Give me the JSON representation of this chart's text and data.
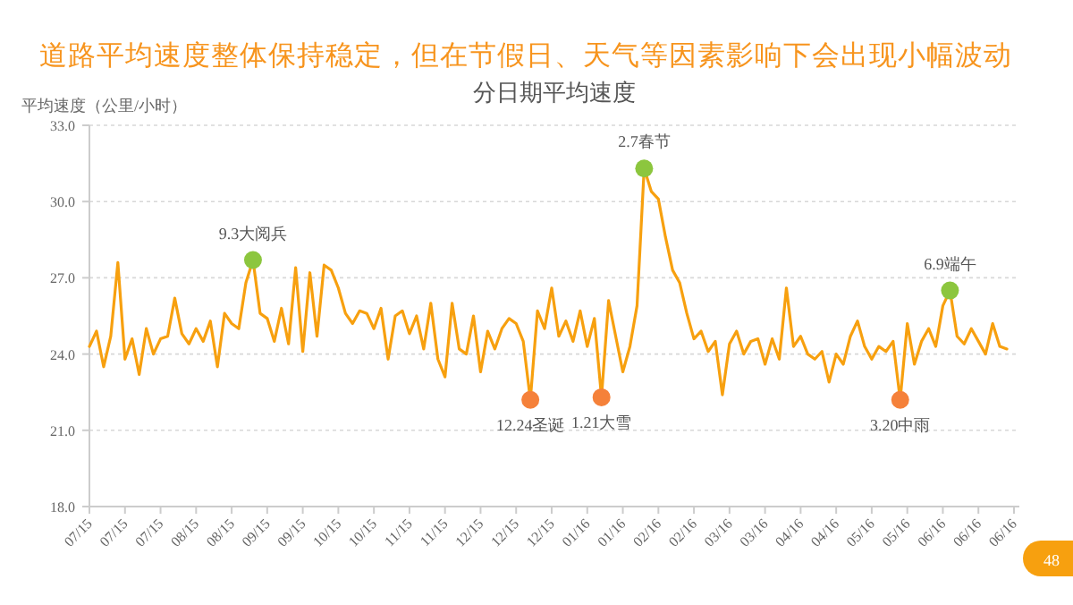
{
  "chart_data": {
    "type": "line",
    "title": "道路平均速度整体保持稳定，但在节假日、天气等因素影响下会出现小幅波动",
    "subtitle": "分日期平均速度",
    "ylabel": "平均速度（公里/小时）",
    "categories": [
      "07/15",
      null,
      null,
      null,
      null,
      "07/15",
      null,
      null,
      null,
      null,
      "07/15",
      null,
      null,
      null,
      null,
      "08/15",
      null,
      null,
      null,
      null,
      "08/15",
      null,
      null,
      null,
      null,
      "09/15",
      null,
      null,
      null,
      null,
      "09/15",
      null,
      null,
      null,
      null,
      "10/15",
      null,
      null,
      null,
      null,
      "10/15",
      null,
      null,
      null,
      null,
      "11/15",
      null,
      null,
      null,
      null,
      "11/15",
      null,
      null,
      null,
      null,
      "12/15",
      null,
      null,
      null,
      null,
      "12/15",
      null,
      null,
      null,
      null,
      "12/15",
      null,
      null,
      null,
      null,
      "01/16",
      null,
      null,
      null,
      null,
      "01/16",
      null,
      null,
      null,
      null,
      "02/16",
      null,
      null,
      null,
      null,
      "02/16",
      null,
      null,
      null,
      null,
      "03/16",
      null,
      null,
      null,
      null,
      "03/16",
      null,
      null,
      null,
      null,
      "04/16",
      null,
      null,
      null,
      null,
      "04/16",
      null,
      null,
      null,
      null,
      "05/16",
      null,
      null,
      null,
      null,
      "05/16",
      null,
      null,
      null,
      null,
      "06/16",
      null,
      null,
      null,
      null,
      "06/16",
      null,
      null,
      null,
      null,
      "06/16"
    ],
    "series": [
      {
        "color": "#f7a00f",
        "values": [
          24.3,
          24.9,
          23.5,
          24.7,
          27.6,
          23.8,
          24.6,
          23.2,
          25.0,
          24.0,
          24.6,
          24.7,
          26.2,
          24.8,
          24.4,
          25.0,
          24.5,
          25.3,
          23.5,
          25.6,
          25.2,
          25.0,
          26.8,
          27.7,
          25.6,
          25.4,
          24.5,
          25.8,
          24.4,
          27.4,
          24.1,
          27.2,
          24.7,
          27.5,
          27.3,
          26.6,
          25.6,
          25.2,
          25.7,
          25.6,
          25.0,
          25.8,
          23.8,
          25.5,
          25.7,
          24.8,
          25.5,
          24.2,
          26.0,
          23.8,
          23.1,
          26.0,
          24.2,
          24.0,
          25.5,
          23.3,
          24.9,
          24.2,
          25.0,
          25.4,
          25.2,
          24.5,
          22.2,
          25.7,
          25.0,
          26.6,
          24.7,
          25.3,
          24.5,
          25.7,
          24.3,
          25.4,
          22.3,
          26.1,
          24.7,
          23.3,
          24.3,
          25.9,
          31.3,
          30.4,
          30.1,
          28.6,
          27.3,
          26.8,
          25.6,
          24.6,
          24.9,
          24.1,
          24.5,
          22.4,
          24.4,
          24.9,
          24.0,
          24.5,
          24.6,
          23.6,
          24.6,
          23.8,
          26.6,
          24.3,
          24.7,
          24.0,
          23.8,
          24.1,
          22.9,
          24.0,
          23.6,
          24.7,
          25.3,
          24.3,
          23.8,
          24.3,
          24.1,
          24.5,
          22.2,
          25.2,
          23.6,
          24.5,
          25.0,
          24.3,
          25.9,
          26.5,
          24.7,
          24.4,
          25.0,
          24.5,
          24.0,
          25.2,
          24.3,
          24.2,
          null
        ]
      },
      {
        "type": "scatter",
        "colors": [
          null,
          null,
          null,
          null,
          null,
          null,
          null,
          null,
          null,
          null,
          null,
          null,
          null,
          null,
          null,
          null,
          null,
          null,
          null,
          null,
          null,
          null,
          null,
          "#8cc63e",
          null,
          null,
          null,
          null,
          null,
          null,
          null,
          null,
          null,
          null,
          null,
          null,
          null,
          null,
          null,
          null,
          null,
          null,
          null,
          null,
          null,
          null,
          null,
          null,
          null,
          null,
          null,
          null,
          null,
          null,
          null,
          null,
          null,
          null,
          null,
          null,
          null,
          null,
          "#f5813a",
          null,
          null,
          null,
          null,
          null,
          null,
          null,
          null,
          null,
          "#f5813a",
          null,
          null,
          null,
          null,
          null,
          "#8cc63e",
          null,
          null,
          null,
          null,
          null,
          null,
          null,
          null,
          null,
          null,
          null,
          null,
          null,
          null,
          null,
          null,
          null,
          null,
          null,
          null,
          null,
          null,
          null,
          null,
          null,
          null,
          null,
          null,
          null,
          null,
          null,
          null,
          null,
          null,
          null,
          "#f5813a",
          null,
          null,
          null,
          null,
          null,
          null,
          "#8cc63e",
          null,
          null,
          null,
          null,
          null,
          null,
          null,
          null,
          null
        ],
        "values": [
          null,
          null,
          null,
          null,
          null,
          null,
          null,
          null,
          null,
          null,
          null,
          null,
          null,
          null,
          null,
          null,
          null,
          null,
          null,
          null,
          null,
          null,
          null,
          27.7,
          null,
          null,
          null,
          null,
          null,
          null,
          null,
          null,
          null,
          null,
          null,
          null,
          null,
          null,
          null,
          null,
          null,
          null,
          null,
          null,
          null,
          null,
          null,
          null,
          null,
          null,
          null,
          null,
          null,
          null,
          null,
          null,
          null,
          null,
          null,
          null,
          null,
          null,
          22.2,
          null,
          null,
          null,
          null,
          null,
          null,
          null,
          null,
          null,
          22.3,
          null,
          null,
          null,
          null,
          null,
          31.3,
          null,
          null,
          null,
          null,
          null,
          null,
          null,
          null,
          null,
          null,
          null,
          null,
          null,
          null,
          null,
          null,
          null,
          null,
          null,
          null,
          null,
          null,
          null,
          null,
          null,
          null,
          null,
          null,
          null,
          null,
          null,
          null,
          null,
          null,
          null,
          22.2,
          null,
          null,
          null,
          null,
          null,
          null,
          26.5,
          null,
          null,
          null,
          null,
          null,
          null,
          null,
          null,
          null
        ]
      }
    ],
    "ylim": [
      18,
      33
    ],
    "yticks": [
      {
        "value": 18,
        "label": "18.0"
      },
      {
        "value": 21,
        "label": "21.0"
      },
      {
        "value": 24,
        "label": "24.0"
      },
      {
        "value": 27,
        "label": "27.0"
      },
      {
        "value": 30,
        "label": "30.0"
      },
      {
        "value": 33,
        "label": "33.0"
      }
    ],
    "grid": "y",
    "annotations": [
      {
        "text": "9.3大阅兵",
        "y": 27.7
      },
      {
        "text": "12.24圣诞",
        "y": 22.2
      },
      {
        "text": "1.21大雪",
        "y": 22.3
      },
      {
        "text": "2.7春节",
        "y": 31.3
      },
      {
        "text": "3.20中雨",
        "y": 22.2
      },
      {
        "text": "6.9端午",
        "y": 26.5
      },
      "48"
    ]
  }
}
